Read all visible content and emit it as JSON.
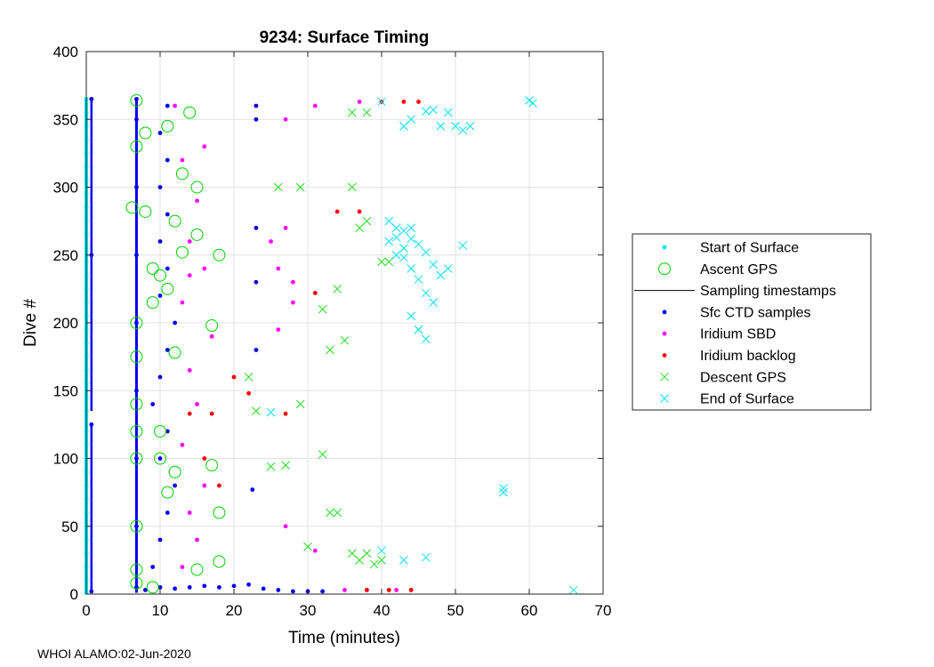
{
  "chart_data": {
    "type": "scatter",
    "title": "9234: Surface Timing",
    "xlabel": "Time (minutes)",
    "ylabel": "Dive #",
    "xlim": [
      0,
      70
    ],
    "ylim": [
      0,
      400
    ],
    "xticks": [
      "0",
      "10",
      "20",
      "30",
      "40",
      "50",
      "60",
      "70"
    ],
    "yticks": [
      "0",
      "50",
      "100",
      "150",
      "200",
      "250",
      "300",
      "350",
      "400"
    ],
    "grid": true,
    "legend_position": "right",
    "legend": [
      {
        "label": "Start of Surface",
        "color": "#00e5ee",
        "marker": "dot"
      },
      {
        "label": "Ascent GPS",
        "color": "#00d100",
        "marker": "circle"
      },
      {
        "label": "Sampling timestamps",
        "color": "#000000",
        "marker": "line"
      },
      {
        "label": "Sfc CTD samples",
        "color": "#0000ee",
        "marker": "dot"
      },
      {
        "label": "Iridium SBD",
        "color": "#ff00ff",
        "marker": "dot"
      },
      {
        "label": "Iridium backlog",
        "color": "#ff0000",
        "marker": "dot"
      },
      {
        "label": "Descent GPS",
        "color": "#22dd22",
        "marker": "x"
      },
      {
        "label": "End of Surface",
        "color": "#00e5ee",
        "marker": "x"
      }
    ],
    "series": [
      {
        "name": "Start of Surface",
        "note": "vertical run at t=0 for dives 1-365",
        "points": [
          [
            0,
            1
          ],
          [
            0,
            10
          ],
          [
            0,
            20
          ],
          [
            0,
            30
          ],
          [
            0,
            40
          ],
          [
            0,
            50
          ],
          [
            0,
            60
          ],
          [
            0,
            70
          ],
          [
            0,
            80
          ],
          [
            0,
            90
          ],
          [
            0,
            100
          ],
          [
            0,
            110
          ],
          [
            0,
            120
          ],
          [
            0,
            135
          ],
          [
            0,
            145
          ],
          [
            0,
            155
          ],
          [
            0,
            165
          ],
          [
            0,
            175
          ],
          [
            0,
            185
          ],
          [
            0,
            195
          ],
          [
            0,
            205
          ],
          [
            0,
            215
          ],
          [
            0,
            225
          ],
          [
            0,
            235
          ],
          [
            0,
            245
          ],
          [
            0,
            255
          ],
          [
            0,
            265
          ],
          [
            0,
            275
          ],
          [
            0,
            285
          ],
          [
            0,
            295
          ],
          [
            0,
            305
          ],
          [
            0,
            315
          ],
          [
            0,
            325
          ],
          [
            0,
            335
          ],
          [
            0,
            345
          ],
          [
            0,
            355
          ],
          [
            0,
            365
          ]
        ]
      },
      {
        "name": "Sfc CTD samples",
        "note": "vertical run at t~6.8 min plus bursts near 0.7, 9-13 and 23 min",
        "points": [
          [
            6.8,
            5
          ],
          [
            6.8,
            50
          ],
          [
            6.8,
            100
          ],
          [
            6.8,
            150
          ],
          [
            6.8,
            200
          ],
          [
            6.8,
            250
          ],
          [
            6.8,
            300
          ],
          [
            6.8,
            350
          ],
          [
            6.8,
            365
          ],
          [
            0.7,
            2
          ],
          [
            0.7,
            125
          ],
          [
            0.7,
            250
          ],
          [
            0.7,
            365
          ],
          [
            8,
            3
          ],
          [
            10,
            5
          ],
          [
            12,
            4
          ],
          [
            14,
            5
          ],
          [
            16,
            6
          ],
          [
            18,
            5
          ],
          [
            20,
            6
          ],
          [
            22,
            7
          ],
          [
            24,
            4
          ],
          [
            26,
            3
          ],
          [
            28,
            2
          ],
          [
            30,
            2
          ],
          [
            32,
            2
          ],
          [
            9,
            20
          ],
          [
            10,
            40
          ],
          [
            11,
            60
          ],
          [
            12,
            80
          ],
          [
            10,
            100
          ],
          [
            11,
            120
          ],
          [
            9,
            140
          ],
          [
            10,
            160
          ],
          [
            11,
            180
          ],
          [
            12,
            200
          ],
          [
            10,
            220
          ],
          [
            11,
            240
          ],
          [
            10,
            260
          ],
          [
            11,
            280
          ],
          [
            10,
            300
          ],
          [
            11,
            320
          ],
          [
            10,
            340
          ],
          [
            11,
            360
          ],
          [
            23,
            270
          ],
          [
            23,
            350
          ],
          [
            23,
            360
          ],
          [
            23,
            230
          ],
          [
            23,
            180
          ],
          [
            22.5,
            77
          ]
        ]
      },
      {
        "name": "Iridium SBD",
        "points": [
          [
            13,
            20
          ],
          [
            15,
            40
          ],
          [
            14,
            60
          ],
          [
            16,
            80
          ],
          [
            13,
            110
          ],
          [
            15,
            140
          ],
          [
            14,
            165
          ],
          [
            17,
            190
          ],
          [
            13,
            215
          ],
          [
            16,
            240
          ],
          [
            14,
            260
          ],
          [
            15,
            290
          ],
          [
            13,
            320
          ],
          [
            12,
            360
          ],
          [
            26,
            240
          ],
          [
            27,
            270
          ],
          [
            25,
            260
          ],
          [
            27,
            350
          ],
          [
            31,
            360
          ],
          [
            37,
            363
          ],
          [
            42,
            3
          ],
          [
            28,
            230
          ],
          [
            26,
            195
          ],
          [
            28,
            215
          ],
          [
            31,
            32
          ],
          [
            27,
            50
          ],
          [
            35,
            3
          ],
          [
            38,
            3
          ],
          [
            14,
            235
          ],
          [
            16,
            330
          ]
        ]
      },
      {
        "name": "Iridium backlog",
        "points": [
          [
            14,
            133
          ],
          [
            17,
            133
          ],
          [
            20,
            160
          ],
          [
            18,
            80
          ],
          [
            16,
            100
          ],
          [
            22,
            148
          ],
          [
            27,
            133
          ],
          [
            31,
            222
          ],
          [
            34,
            282
          ],
          [
            37,
            282
          ],
          [
            38,
            3
          ],
          [
            41,
            3
          ],
          [
            44,
            3
          ],
          [
            40,
            363
          ],
          [
            43,
            363
          ],
          [
            45,
            363
          ]
        ]
      },
      {
        "name": "Ascent GPS",
        "points": [
          [
            6.8,
            364
          ],
          [
            6.8,
            330
          ],
          [
            6.2,
            285
          ],
          [
            6.8,
            200
          ],
          [
            6.8,
            175
          ],
          [
            6.8,
            140
          ],
          [
            6.8,
            120
          ],
          [
            6.8,
            100
          ],
          [
            6.8,
            50
          ],
          [
            6.8,
            18
          ],
          [
            6.8,
            8
          ],
          [
            9,
            5
          ],
          [
            10,
            100
          ],
          [
            9,
            240
          ],
          [
            10,
            235
          ],
          [
            11,
            225
          ],
          [
            9,
            215
          ],
          [
            8,
            340
          ],
          [
            11,
            345
          ],
          [
            14,
            355
          ],
          [
            13,
            310
          ],
          [
            15,
            300
          ],
          [
            12,
            275
          ],
          [
            15,
            265
          ],
          [
            18,
            250
          ],
          [
            13,
            252
          ],
          [
            17,
            95
          ],
          [
            18,
            60
          ],
          [
            18,
            24
          ],
          [
            15,
            18
          ],
          [
            10,
            120
          ],
          [
            11,
            75
          ],
          [
            12,
            90
          ],
          [
            8,
            282
          ],
          [
            12,
            178
          ],
          [
            17,
            198
          ]
        ]
      },
      {
        "name": "Descent GPS",
        "points": [
          [
            22,
            160
          ],
          [
            23,
            135
          ],
          [
            25,
            94
          ],
          [
            26,
            300
          ],
          [
            29,
            300
          ],
          [
            30,
            35
          ],
          [
            33,
            60
          ],
          [
            34,
            60
          ],
          [
            34,
            225
          ],
          [
            36,
            300
          ],
          [
            36,
            355
          ],
          [
            38,
            355
          ],
          [
            38,
            275
          ],
          [
            40,
            245
          ],
          [
            41,
            245
          ],
          [
            45,
            195
          ],
          [
            36,
            30
          ],
          [
            37,
            25
          ],
          [
            38,
            30
          ],
          [
            39,
            22
          ],
          [
            40,
            25
          ],
          [
            32,
            210
          ],
          [
            33,
            180
          ],
          [
            37,
            270
          ],
          [
            27,
            95
          ],
          [
            29,
            140
          ],
          [
            32,
            103
          ],
          [
            35,
            187
          ]
        ]
      },
      {
        "name": "End of Surface",
        "points": [
          [
            42,
            263
          ],
          [
            43,
            268
          ],
          [
            44,
            262
          ],
          [
            43,
            255
          ],
          [
            42,
            270
          ],
          [
            44,
            270
          ],
          [
            41,
            260
          ],
          [
            45,
            258
          ],
          [
            42,
            250
          ],
          [
            46,
            252
          ],
          [
            43,
            248
          ],
          [
            47,
            243
          ],
          [
            44,
            240
          ],
          [
            49,
            240
          ],
          [
            45,
            232
          ],
          [
            46,
            222
          ],
          [
            47,
            215
          ],
          [
            44,
            205
          ],
          [
            45,
            195
          ],
          [
            46,
            188
          ],
          [
            40,
            363
          ],
          [
            44,
            350
          ],
          [
            43,
            345
          ],
          [
            46,
            356
          ],
          [
            47,
            357
          ],
          [
            48,
            345
          ],
          [
            49,
            355
          ],
          [
            50,
            345
          ],
          [
            51,
            342
          ],
          [
            52,
            345
          ],
          [
            60,
            364
          ],
          [
            60.5,
            362
          ],
          [
            56.5,
            78
          ],
          [
            56.5,
            75
          ],
          [
            66,
            3
          ],
          [
            40,
            32
          ],
          [
            43,
            25
          ],
          [
            46,
            27
          ],
          [
            51,
            257
          ],
          [
            41,
            275
          ],
          [
            25,
            134
          ],
          [
            48,
            235
          ]
        ]
      }
    ]
  },
  "footer": {
    "text": "WHOI ALAMO:02-Jun-2020"
  }
}
